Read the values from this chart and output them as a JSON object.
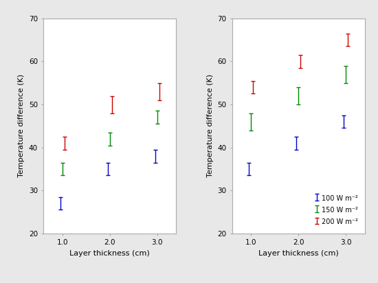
{
  "x": [
    1.0,
    2.0,
    3.0
  ],
  "left_panel": {
    "blue": {
      "y": [
        27,
        35,
        38
      ],
      "yerr_lo": [
        1.5,
        1.5,
        1.5
      ],
      "yerr_hi": [
        1.5,
        1.5,
        1.5
      ]
    },
    "green": {
      "y": [
        35,
        42,
        47
      ],
      "yerr_lo": [
        1.5,
        1.5,
        1.5
      ],
      "yerr_hi": [
        1.5,
        1.5,
        1.5
      ]
    },
    "red": {
      "y": [
        41,
        50,
        53
      ],
      "yerr_lo": [
        1.5,
        2.0,
        2.0
      ],
      "yerr_hi": [
        1.5,
        2.0,
        2.0
      ]
    }
  },
  "right_panel": {
    "blue": {
      "y": [
        35,
        41,
        46
      ],
      "yerr_lo": [
        1.5,
        1.5,
        1.5
      ],
      "yerr_hi": [
        1.5,
        1.5,
        1.5
      ]
    },
    "green": {
      "y": [
        46,
        52,
        57
      ],
      "yerr_lo": [
        2.0,
        2.0,
        2.0
      ],
      "yerr_hi": [
        2.0,
        2.0,
        2.0
      ]
    },
    "red": {
      "y": [
        54,
        60,
        65
      ],
      "yerr_lo": [
        1.5,
        1.5,
        1.5
      ],
      "yerr_hi": [
        1.5,
        1.5,
        1.5
      ]
    }
  },
  "colors": {
    "blue": "#0000cc",
    "green": "#008800",
    "red": "#cc0000"
  },
  "offsets": [
    -0.04,
    0.0,
    0.04
  ],
  "ylim": [
    20,
    70
  ],
  "yticks": [
    20,
    30,
    40,
    50,
    60,
    70
  ],
  "xticks": [
    1.0,
    2.0,
    3.0
  ],
  "ylabel": "Temperature difference (K)",
  "xlabel": "Layer thickness (cm)",
  "legend_labels": [
    "100 W m⁻²",
    "150 W m⁻²",
    "200 W m⁻²"
  ],
  "capsize": 2.5,
  "elinewidth": 1.0,
  "background_color": "#e8e8e8",
  "axes_bg": "#ffffff",
  "tick_fontsize": 7.5,
  "label_fontsize": 8.0,
  "legend_fontsize": 7.0
}
